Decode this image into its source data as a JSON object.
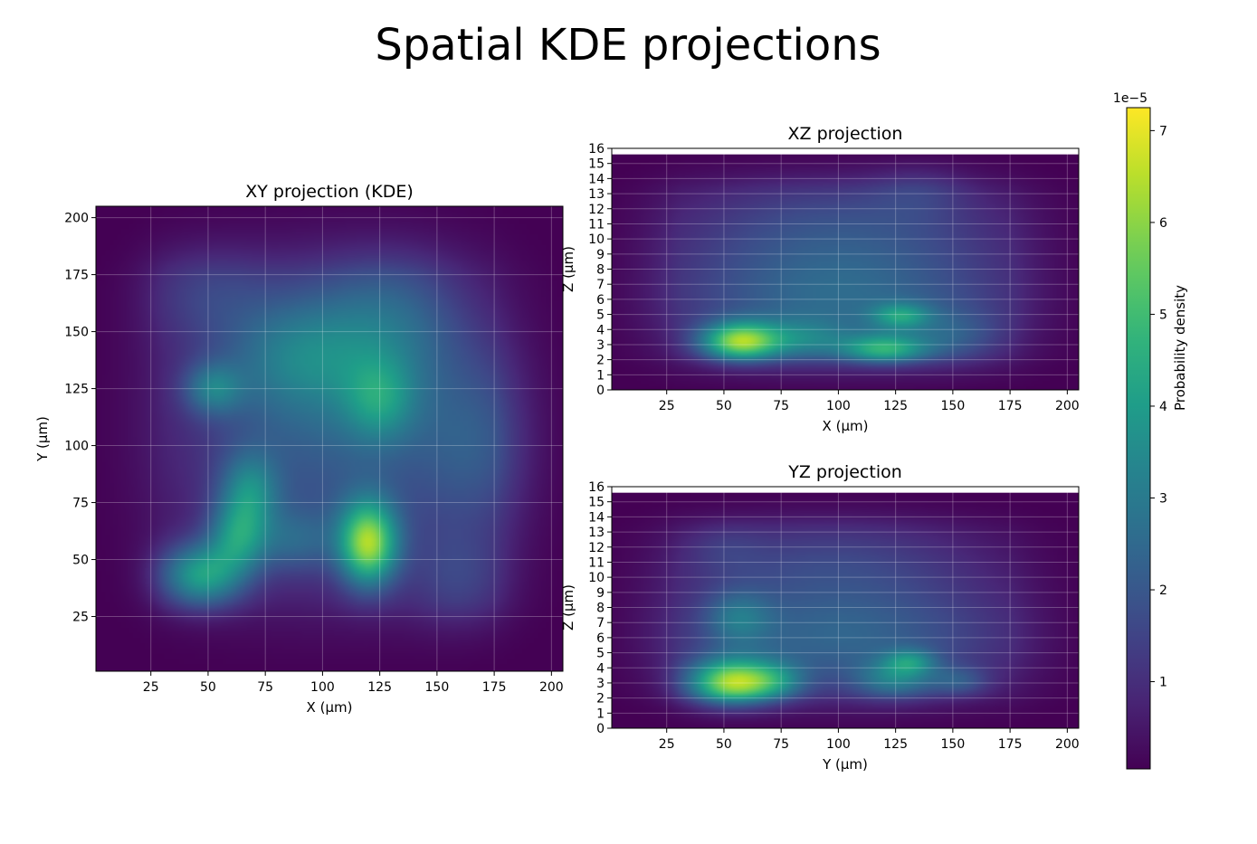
{
  "title": "Spatial KDE projections",
  "colorbar": {
    "label": "Probability density",
    "exponent_label": "1e−5",
    "range": [
      0.05,
      7.25
    ],
    "ticks": [
      1,
      2,
      3,
      4,
      5,
      6,
      7
    ],
    "tick_labels": [
      "1",
      "2",
      "3",
      "4",
      "5",
      "6",
      "7"
    ],
    "colormap": "viridis"
  },
  "chart_data": [
    {
      "type": "heatmap",
      "title": "XY projection (KDE)",
      "xlabel": "X (µm)",
      "ylabel": "Y (µm)",
      "xlim": [
        1,
        205
      ],
      "ylim": [
        1,
        205
      ],
      "xticks": [
        25,
        50,
        75,
        100,
        125,
        150,
        175,
        200
      ],
      "yticks": [
        25,
        50,
        75,
        100,
        125,
        150,
        175,
        200
      ],
      "grid": true,
      "hotspots": [
        {
          "x": 120,
          "y": 57,
          "sx": 9,
          "sy": 13,
          "amp": 5.2
        },
        {
          "x": 47,
          "y": 43,
          "sx": 13,
          "sy": 10,
          "amp": 3.6
        },
        {
          "x": 63,
          "y": 60,
          "sx": 9,
          "sy": 11,
          "amp": 2.6
        },
        {
          "x": 68,
          "y": 80,
          "sx": 9,
          "sy": 12,
          "amp": 2.2
        },
        {
          "x": 88,
          "y": 58,
          "sx": 12,
          "sy": 10,
          "amp": 1.3
        },
        {
          "x": 52,
          "y": 125,
          "sx": 9,
          "sy": 8,
          "amp": 2.0
        },
        {
          "x": 125,
          "y": 120,
          "sx": 11,
          "sy": 13,
          "amp": 1.9
        },
        {
          "x": 90,
          "y": 140,
          "sx": 22,
          "sy": 18,
          "amp": 1.6
        },
        {
          "x": 130,
          "y": 155,
          "sx": 22,
          "sy": 22,
          "amp": 1.4
        },
        {
          "x": 168,
          "y": 100,
          "sx": 18,
          "sy": 28,
          "amp": 1.2
        },
        {
          "x": 105,
          "y": 110,
          "sx": 50,
          "sy": 50,
          "amp": 2.1
        },
        {
          "x": 48,
          "y": 168,
          "sx": 20,
          "sy": 16,
          "amp": 0.9
        },
        {
          "x": 160,
          "y": 40,
          "sx": 16,
          "sy": 16,
          "amp": 1.0
        }
      ]
    },
    {
      "type": "heatmap",
      "title": "XZ projection",
      "xlabel": "X (µm)",
      "ylabel": "Z (µm)",
      "xlim": [
        1,
        205
      ],
      "ylim": [
        0,
        16
      ],
      "xticks": [
        25,
        50,
        75,
        100,
        125,
        150,
        175,
        200
      ],
      "yticks": [
        0,
        1,
        2,
        3,
        4,
        5,
        6,
        7,
        8,
        9,
        10,
        11,
        12,
        13,
        14,
        15,
        16
      ],
      "data_zmax": 15.6,
      "grid": true,
      "hotspots": [
        {
          "x": 57,
          "y": 3.2,
          "sx": 12,
          "sy": 0.9,
          "amp": 5.0
        },
        {
          "x": 120,
          "y": 2.7,
          "sx": 13,
          "sy": 0.7,
          "amp": 3.3
        },
        {
          "x": 127,
          "y": 4.9,
          "sx": 9,
          "sy": 0.6,
          "amp": 2.2
        },
        {
          "x": 85,
          "y": 3.3,
          "sx": 14,
          "sy": 1.0,
          "amp": 1.6
        },
        {
          "x": 150,
          "y": 3.5,
          "sx": 15,
          "sy": 1.3,
          "amp": 1.1
        },
        {
          "x": 100,
          "y": 6.0,
          "sx": 55,
          "sy": 3.2,
          "amp": 2.4
        },
        {
          "x": 100,
          "y": 11.5,
          "sx": 55,
          "sy": 2.5,
          "amp": 1.2
        },
        {
          "x": 135,
          "y": 13.5,
          "sx": 15,
          "sy": 1.5,
          "amp": 0.6
        }
      ]
    },
    {
      "type": "heatmap",
      "title": "YZ projection",
      "xlabel": "Y (µm)",
      "ylabel": "Z (µm)",
      "xlim": [
        1,
        205
      ],
      "ylim": [
        0,
        16
      ],
      "xticks": [
        25,
        50,
        75,
        100,
        125,
        150,
        175,
        200
      ],
      "yticks": [
        0,
        1,
        2,
        3,
        4,
        5,
        6,
        7,
        8,
        9,
        10,
        11,
        12,
        13,
        14,
        15,
        16
      ],
      "data_zmax": 15.6,
      "grid": true,
      "hotspots": [
        {
          "x": 53,
          "y": 3.0,
          "sx": 13,
          "sy": 1.1,
          "amp": 5.2
        },
        {
          "x": 72,
          "y": 3.1,
          "sx": 10,
          "sy": 0.9,
          "amp": 1.8
        },
        {
          "x": 125,
          "y": 3.2,
          "sx": 12,
          "sy": 0.9,
          "amp": 1.9
        },
        {
          "x": 131,
          "y": 4.4,
          "sx": 8,
          "sy": 0.6,
          "amp": 1.9
        },
        {
          "x": 153,
          "y": 3.1,
          "sx": 9,
          "sy": 0.7,
          "amp": 1.2
        },
        {
          "x": 56,
          "y": 7.3,
          "sx": 10,
          "sy": 1.3,
          "amp": 1.5
        },
        {
          "x": 100,
          "y": 6.0,
          "sx": 55,
          "sy": 3.0,
          "amp": 2.3
        },
        {
          "x": 95,
          "y": 11.5,
          "sx": 50,
          "sy": 2.2,
          "amp": 1.1
        },
        {
          "x": 50,
          "y": 12.0,
          "sx": 12,
          "sy": 1.2,
          "amp": 0.5
        }
      ]
    }
  ]
}
